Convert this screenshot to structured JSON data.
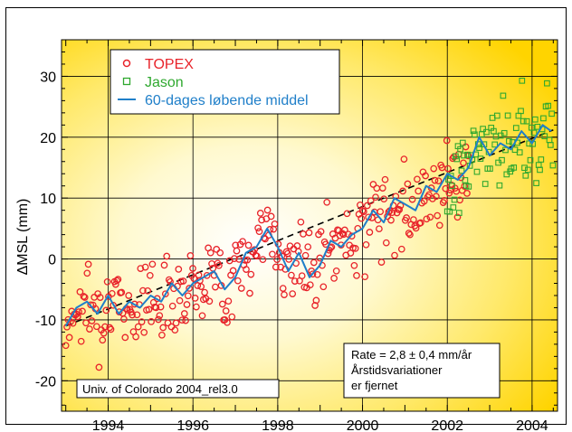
{
  "chart_data": {
    "type": "scatter",
    "ylabel": "ΔMSL  (mm)",
    "xlim": [
      1992.9,
      2004.6
    ],
    "ylim": [
      -25,
      36
    ],
    "x_ticks": [
      1994,
      1996,
      1998,
      2000,
      2002,
      2004
    ],
    "y_ticks": [
      -20,
      -10,
      0,
      10,
      20,
      30
    ],
    "grid": true,
    "legend_position": "top-left",
    "legend": [
      {
        "label": "TOPEX",
        "marker": "circle",
        "color": "#e8232a"
      },
      {
        "label": "Jason",
        "marker": "square",
        "color": "#2fa82f"
      },
      {
        "label": "60-dages løbende middel",
        "marker": "line",
        "color": "#1f7fc9"
      }
    ],
    "trend": {
      "slope_mm_per_year": 2.8,
      "x": [
        1993.0,
        2004.5
      ],
      "y": [
        -11.0,
        21.2
      ],
      "style": "dashed",
      "color": "#000000"
    },
    "series": [
      {
        "name": "60-dages løbende middel",
        "type": "line",
        "color": "#1f7fc9",
        "x": [
          1993.0,
          1993.25,
          1993.5,
          1993.75,
          1994.0,
          1994.25,
          1994.5,
          1994.75,
          1995.0,
          1995.25,
          1995.5,
          1995.75,
          1996.0,
          1996.25,
          1996.5,
          1996.75,
          1997.0,
          1997.25,
          1997.5,
          1997.75,
          1998.0,
          1998.25,
          1998.5,
          1998.75,
          1999.0,
          1999.25,
          1999.5,
          1999.75,
          2000.0,
          2000.25,
          2000.5,
          2000.75,
          2001.0,
          2001.25,
          2001.5,
          2001.75,
          2002.0,
          2002.25,
          2002.5,
          2002.75,
          2003.0,
          2003.25,
          2003.5,
          2003.75,
          2004.0,
          2004.25,
          2004.45
        ],
        "y": [
          -11,
          -8,
          -7,
          -9,
          -6,
          -9,
          -7,
          -8,
          -6,
          -7,
          -4,
          -6,
          -4,
          -3,
          -2,
          -5,
          -3,
          1,
          2,
          5,
          2,
          -2,
          1,
          -3,
          -1,
          3,
          2,
          4,
          5,
          8,
          6,
          10,
          9,
          8,
          12,
          11,
          14,
          13,
          15,
          20,
          17,
          19,
          18,
          21,
          19,
          22,
          21
        ]
      }
    ],
    "topex_range": [
      1993.0,
      2002.5
    ],
    "jason_range": [
      2002.0,
      2004.5
    ],
    "annotation_rate": "Rate = 2,8 ± 0,4 mm/år",
    "annotation_line2": "Årstidsvariationer",
    "annotation_line3": "er fjernet",
    "credit": "Univ. of Colorado 2004_rel3.0"
  }
}
